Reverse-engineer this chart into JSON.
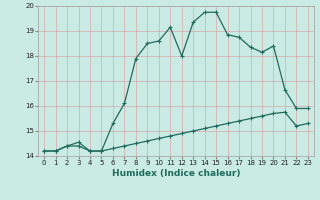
{
  "xlabel": "Humidex (Indice chaleur)",
  "background_color": "#caeae4",
  "line_color": "#1f6b5e",
  "grid_color": "#e0b8b8",
  "xlim": [
    -0.5,
    23.5
  ],
  "ylim": [
    14,
    20
  ],
  "yticks": [
    14,
    15,
    16,
    17,
    18,
    19,
    20
  ],
  "xticks": [
    0,
    1,
    2,
    3,
    4,
    5,
    6,
    7,
    8,
    9,
    10,
    11,
    12,
    13,
    14,
    15,
    16,
    17,
    18,
    19,
    20,
    21,
    22,
    23
  ],
  "line1_y": [
    14.2,
    14.2,
    14.4,
    14.4,
    14.2,
    14.2,
    15.3,
    16.1,
    17.9,
    18.5,
    18.6,
    19.15,
    18.0,
    19.35,
    19.75,
    19.75,
    18.85,
    18.75,
    18.35,
    18.15,
    18.4,
    16.65,
    15.9,
    15.9
  ],
  "line2_y": [
    14.2,
    14.2,
    14.4,
    14.55,
    14.2,
    14.2,
    14.3,
    14.4,
    14.5,
    14.6,
    14.7,
    14.8,
    14.9,
    15.0,
    15.1,
    15.2,
    15.3,
    15.4,
    15.5,
    15.6,
    15.7,
    15.75,
    15.2,
    15.3
  ],
  "marker": "+",
  "marker_size": 3,
  "line_width": 0.9,
  "tick_fontsize": 5,
  "xlabel_fontsize": 6.5
}
